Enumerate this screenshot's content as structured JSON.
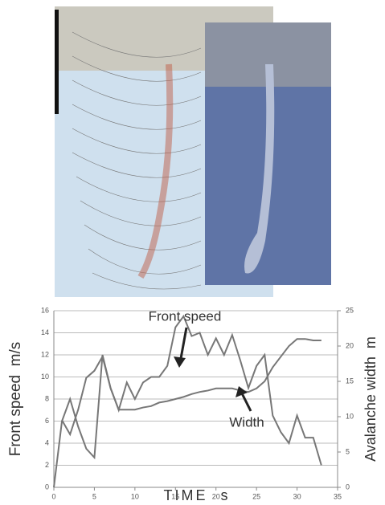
{
  "chart_data": {
    "type": "line",
    "x_label": "TIME  s",
    "y_label": "Front speed  m/s",
    "y2_label": "Avalanche width  m",
    "annotations": [
      "Front speed",
      "Width"
    ],
    "x": [
      0,
      1,
      2,
      3,
      4,
      5,
      6,
      7,
      8,
      9,
      10,
      11,
      12,
      13,
      14,
      15,
      16,
      17,
      18,
      19,
      20,
      21,
      22,
      23,
      24,
      25,
      26,
      27,
      28,
      29,
      30,
      31,
      32,
      33
    ],
    "series": [
      {
        "name": "Front speed",
        "color": "#777777",
        "values": [
          0,
          6,
          8,
          5.5,
          3.5,
          2.7,
          12,
          9,
          7,
          9.5,
          8,
          9.5,
          10,
          10,
          11,
          14.5,
          15.5,
          13.7,
          14,
          12,
          13.5,
          12,
          13.8,
          11.5,
          9,
          11,
          12,
          6.5,
          5,
          4,
          6.5,
          4.5,
          4.5,
          2
        ]
      },
      {
        "name": "Width",
        "color": "#777777",
        "axis": "y2",
        "values": [
          null,
          9.5,
          7.5,
          11,
          15.5,
          16.5,
          18.5,
          14,
          11,
          11,
          11,
          11.3,
          11.5,
          12,
          12.2,
          12.5,
          12.8,
          13.2,
          13.5,
          13.7,
          14,
          14,
          14,
          13.7,
          13.5,
          14,
          15,
          17,
          18.5,
          20,
          21,
          21,
          20.8,
          20.8
        ]
      }
    ],
    "xlim": [
      0,
      35
    ],
    "xticks": [
      0,
      5,
      10,
      15,
      20,
      25,
      30,
      35
    ],
    "ylim": [
      0,
      16
    ],
    "yticks": [
      0,
      2,
      4,
      6,
      8,
      10,
      12,
      14,
      16
    ],
    "y2lim": [
      0,
      25
    ],
    "y2ticks": [
      0,
      5,
      10,
      15,
      20,
      25
    ],
    "grid": true
  }
}
